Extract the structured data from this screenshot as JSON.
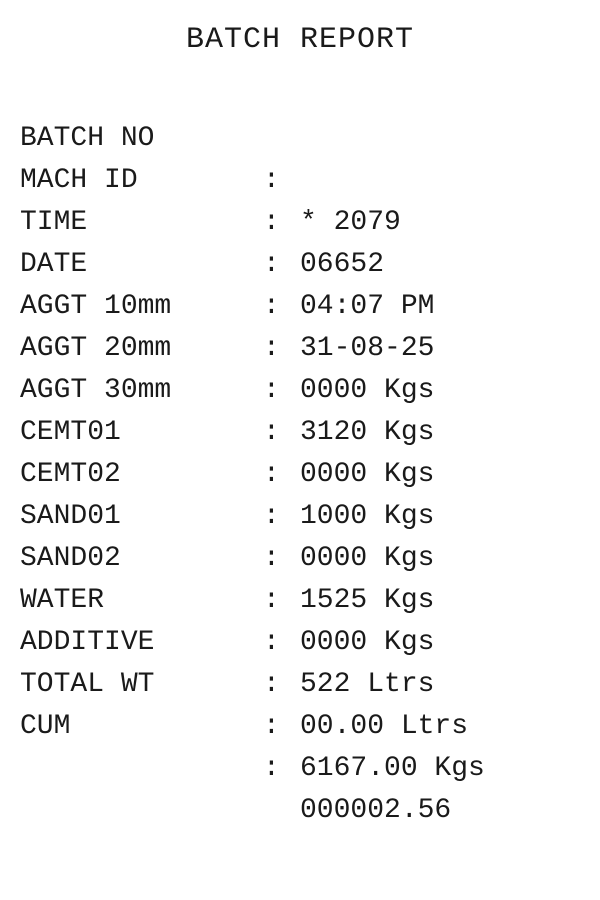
{
  "report": {
    "title": "BATCH REPORT",
    "separator": ":",
    "rows": [
      {
        "label": "BATCH NO",
        "value": "* 2079"
      },
      {
        "label": "MACH ID",
        "value": "06652"
      },
      {
        "label": "TIME",
        "value": "04:07 PM"
      },
      {
        "label": "DATE",
        "value": "31-08-25"
      },
      {
        "label": "AGGT 10mm",
        "value": "0000 Kgs"
      },
      {
        "label": "AGGT 20mm",
        "value": "3120 Kgs"
      },
      {
        "label": "AGGT 30mm",
        "value": "0000 Kgs"
      },
      {
        "label": "CEMT01",
        "value": "1000 Kgs"
      },
      {
        "label": "CEMT02",
        "value": "0000 Kgs"
      },
      {
        "label": "SAND01",
        "value": "1525 Kgs"
      },
      {
        "label": "SAND02",
        "value": "0000 Kgs"
      },
      {
        "label": "WATER",
        "value": "522 Ltrs"
      },
      {
        "label": "ADDITIVE",
        "value": "00.00 Ltrs"
      },
      {
        "label": "TOTAL WT",
        "value": "6167.00 Kgs"
      },
      {
        "label": "CUM",
        "value": "000002.56"
      }
    ]
  }
}
